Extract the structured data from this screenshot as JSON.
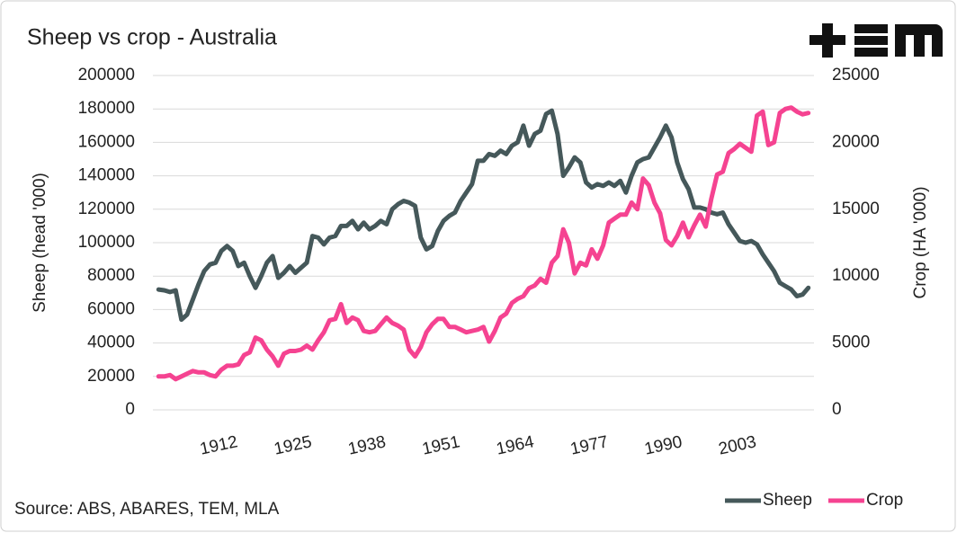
{
  "chart_data": {
    "type": "line",
    "title": "Sheep vs crop - Australia",
    "ylabel": "Sheep (head '000)",
    "y2label": "Crop (HA '000)",
    "source": "Source: ABS, ABARES, TEM, MLA",
    "x": [
      1901,
      1902,
      1903,
      1904,
      1905,
      1906,
      1907,
      1908,
      1909,
      1910,
      1911,
      1912,
      1913,
      1914,
      1915,
      1916,
      1917,
      1918,
      1919,
      1920,
      1921,
      1922,
      1923,
      1924,
      1925,
      1926,
      1927,
      1928,
      1929,
      1930,
      1931,
      1932,
      1933,
      1934,
      1935,
      1936,
      1937,
      1938,
      1939,
      1940,
      1941,
      1942,
      1943,
      1944,
      1945,
      1946,
      1947,
      1948,
      1949,
      1950,
      1951,
      1952,
      1953,
      1954,
      1955,
      1956,
      1957,
      1958,
      1959,
      1960,
      1961,
      1962,
      1963,
      1964,
      1965,
      1966,
      1967,
      1968,
      1969,
      1970,
      1971,
      1972,
      1973,
      1974,
      1975,
      1976,
      1977,
      1978,
      1979,
      1980,
      1981,
      1982,
      1983,
      1984,
      1985,
      1986,
      1987,
      1988,
      1989,
      1990,
      1991,
      1992,
      1993,
      1994,
      1995,
      1996,
      1997,
      1998,
      1999,
      2000,
      2001,
      2002,
      2003,
      2004,
      2005,
      2006,
      2007,
      2008,
      2009,
      2010,
      2011,
      2012,
      2013,
      2014,
      2015
    ],
    "series": [
      {
        "name": "Sheep",
        "color": "#45585a",
        "axis": "y",
        "values": [
          72000,
          71500,
          70500,
          71500,
          54000,
          57000,
          66000,
          75000,
          83000,
          87000,
          88000,
          95000,
          98000,
          95000,
          86000,
          88000,
          80000,
          73000,
          80000,
          88000,
          92000,
          79000,
          82000,
          86000,
          82000,
          85000,
          88000,
          104000,
          103000,
          99000,
          103000,
          104000,
          110000,
          110000,
          113000,
          108000,
          112000,
          108000,
          110000,
          113000,
          111000,
          120000,
          123000,
          125000,
          124000,
          122000,
          103000,
          96000,
          98000,
          107000,
          113000,
          116000,
          118000,
          125000,
          130000,
          135000,
          149000,
          149000,
          153000,
          152000,
          155000,
          153000,
          158000,
          160000,
          170000,
          158000,
          165000,
          167000,
          177000,
          179000,
          165000,
          140000,
          145000,
          151000,
          148000,
          136000,
          133000,
          135000,
          134000,
          136000,
          134000,
          137000,
          130000,
          140000,
          148000,
          150000,
          151000,
          157000,
          163000,
          170000,
          163000,
          148000,
          138000,
          132000,
          121000,
          121000,
          120000,
          118000,
          117000,
          118000,
          111000,
          106000,
          101000,
          100000,
          101000,
          99000,
          93000,
          88000,
          83000,
          76000,
          74000,
          72000,
          68000,
          69000,
          73000
        ]
      },
      {
        "name": "Crop",
        "color": "#f54391",
        "axis": "y2",
        "values": [
          2500,
          2500,
          2600,
          2300,
          2500,
          2700,
          2900,
          2800,
          2800,
          2600,
          2500,
          3000,
          3300,
          3300,
          3400,
          4100,
          4300,
          5400,
          5200,
          4500,
          4000,
          3300,
          4200,
          4400,
          4400,
          4500,
          4800,
          4500,
          5200,
          5800,
          6700,
          6800,
          7900,
          6500,
          6900,
          6700,
          5900,
          5800,
          5900,
          6400,
          6900,
          6500,
          6300,
          6000,
          4500,
          4000,
          4700,
          5800,
          6400,
          6800,
          6800,
          6200,
          6200,
          6000,
          5800,
          5900,
          6000,
          6200,
          5100,
          5900,
          6900,
          7200,
          8000,
          8300,
          8500,
          9100,
          9300,
          9800,
          9500,
          11000,
          11500,
          13500,
          12500,
          10200,
          11000,
          10800,
          12000,
          11300,
          12300,
          14000,
          14300,
          14600,
          14600,
          15500,
          15000,
          17300,
          16800,
          15500,
          14700,
          12700,
          12300,
          13000,
          14000,
          12900,
          13800,
          14600,
          13700,
          15800,
          17600,
          17800,
          19200,
          19500,
          19900,
          19600,
          19300,
          22000,
          22300,
          19800,
          20000,
          22200,
          22500,
          22600,
          22300,
          22100,
          22200
        ]
      }
    ],
    "xlim": [
      1900,
      2016
    ],
    "xticks": [
      1912,
      1925,
      1938,
      1951,
      1964,
      1977,
      1990,
      2003
    ],
    "ylim": [
      0,
      200000
    ],
    "yticks": [
      0,
      20000,
      40000,
      60000,
      80000,
      100000,
      120000,
      140000,
      160000,
      180000,
      200000
    ],
    "y2lim": [
      0,
      25000
    ],
    "y2ticks": [
      0,
      5000,
      10000,
      15000,
      20000,
      25000
    ],
    "grid": true,
    "legend": "bottom-right"
  }
}
